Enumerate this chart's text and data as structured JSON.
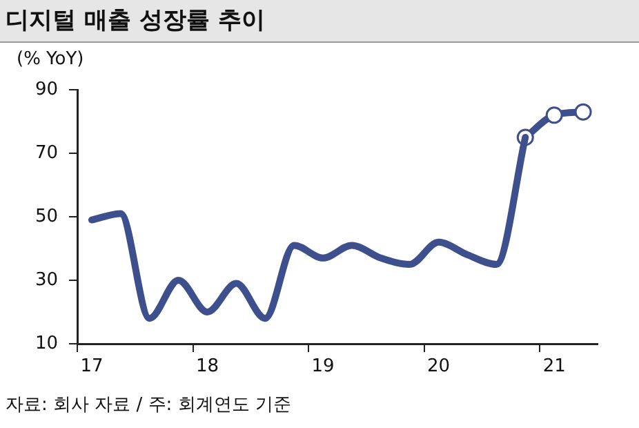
{
  "chart_data": {
    "type": "line",
    "title": "디지털 매출 성장률 추이",
    "ylabel": "(% YoY)",
    "categories": [
      "17",
      null,
      null,
      null,
      "18",
      null,
      null,
      null,
      "19",
      null,
      null,
      null,
      "20",
      null,
      null,
      null,
      "21",
      null
    ],
    "series": [
      {
        "color": "#3d4f8c",
        "marker": "none",
        "values": [
          49,
          51,
          18,
          30,
          20,
          29,
          18,
          41,
          37,
          41,
          37,
          35,
          42,
          38,
          35,
          75,
          null,
          null
        ]
      },
      {
        "color": "#3d4f8c",
        "marker": "circle",
        "values": [
          null,
          null,
          null,
          null,
          null,
          null,
          null,
          null,
          null,
          null,
          null,
          null,
          null,
          null,
          null,
          75,
          82,
          83
        ]
      }
    ],
    "ylim": [
      10,
      90
    ],
    "yticks": [
      10,
      30,
      50,
      70,
      90
    ],
    "grid": false,
    "legend": false,
    "annotations": [
      "자료: 회사 자료 / 주: 회계연도 기준"
    ]
  }
}
